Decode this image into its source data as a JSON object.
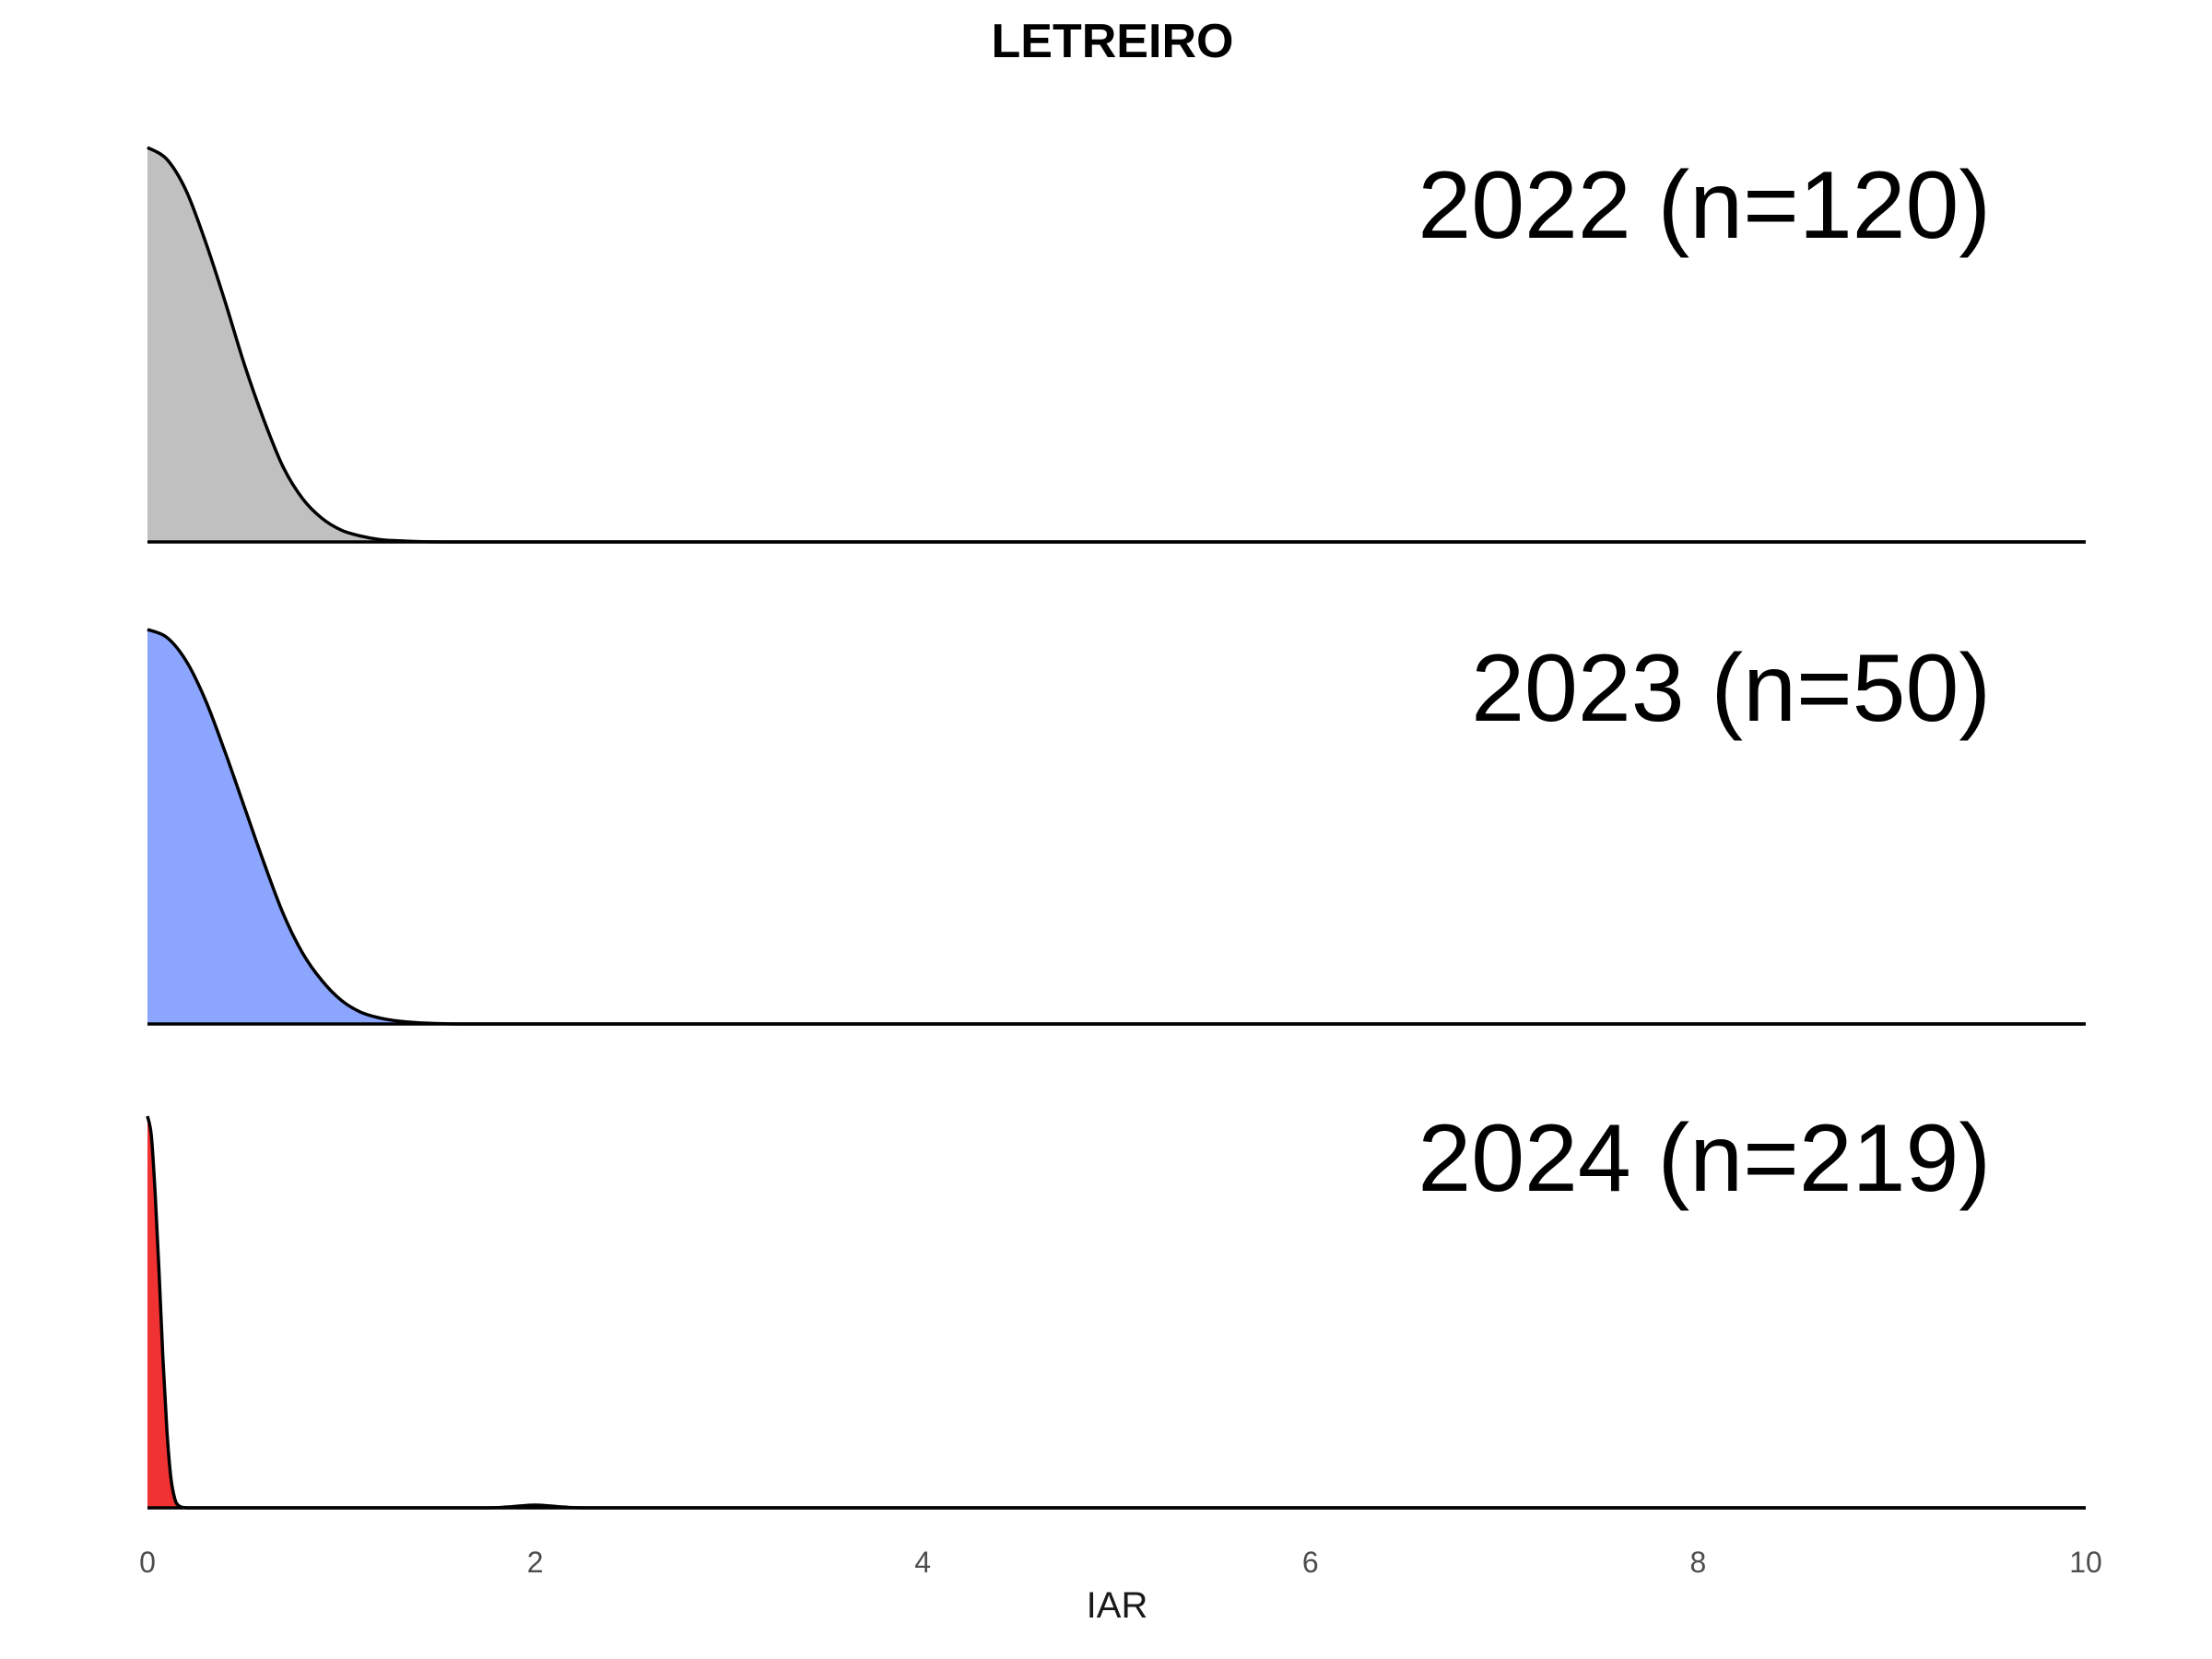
{
  "chart_data": {
    "type": "area",
    "title": "LETREIRO",
    "xlabel": "IAR",
    "ylabel": "",
    "xlim": [
      0,
      10
    ],
    "xticks": [
      0,
      2,
      4,
      6,
      8,
      10
    ],
    "grid": false,
    "legend": "none",
    "panels": [
      {
        "label": "2022 (n=120)",
        "fill": "#c0c0c0",
        "x": [
          0,
          0.1,
          0.2,
          0.3,
          0.4,
          0.5,
          0.6,
          0.7,
          0.8,
          0.9,
          1.0,
          1.1,
          1.2,
          1.3,
          1.4,
          1.6,
          2,
          4,
          6,
          8,
          10
        ],
        "density": [
          1.0,
          0.97,
          0.89,
          0.76,
          0.61,
          0.45,
          0.31,
          0.19,
          0.11,
          0.06,
          0.03,
          0.015,
          0.006,
          0.003,
          0.001,
          0,
          0,
          0,
          0,
          0,
          0
        ]
      },
      {
        "label": "2023 (n=50)",
        "fill": "#8ca6ff",
        "x": [
          0,
          0.1,
          0.2,
          0.3,
          0.4,
          0.5,
          0.6,
          0.7,
          0.8,
          0.9,
          1.0,
          1.1,
          1.2,
          1.3,
          1.4,
          1.5,
          1.6,
          1.8,
          2,
          4,
          6,
          8,
          10
        ],
        "density": [
          1.0,
          0.98,
          0.92,
          0.82,
          0.69,
          0.55,
          0.41,
          0.28,
          0.18,
          0.11,
          0.06,
          0.03,
          0.015,
          0.007,
          0.003,
          0.001,
          0,
          0,
          0,
          0,
          0,
          0,
          0
        ]
      },
      {
        "label": "2024 (n=219)",
        "fill": "#f03232",
        "x": [
          0,
          0.02,
          0.04,
          0.06,
          0.08,
          0.1,
          0.12,
          0.14,
          0.16,
          0.2,
          0.3,
          1.7,
          1.85,
          1.95,
          2.0,
          2.05,
          2.15,
          2.3,
          4,
          6,
          8,
          10
        ],
        "density": [
          1.0,
          0.95,
          0.8,
          0.6,
          0.38,
          0.2,
          0.08,
          0.025,
          0.006,
          0,
          0,
          0,
          0.002,
          0.006,
          0.007,
          0.006,
          0.002,
          0,
          0,
          0,
          0,
          0
        ]
      }
    ]
  }
}
